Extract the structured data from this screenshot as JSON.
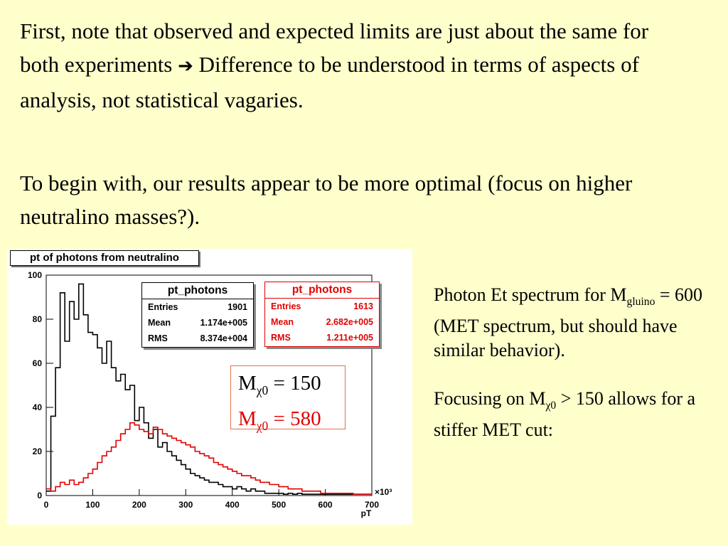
{
  "slide": {
    "para1_before": "First, note that observed and expected limits are just about the same for both experiments",
    "arrow_icon": "right-arrow-icon",
    "para1_after": "Difference to be understood in terms of aspects of analysis, not statistical vagaries.",
    "para2": "To begin with, our results appear to be more optimal (focus on higher neutralino masses?).",
    "side": {
      "line1_pre": "Photon Et spectrum for M",
      "line1_sub": "gluino",
      "line1_post": " = 600 (MET spectrum, but should have similar behavior).",
      "line2_pre": "Focusing on M",
      "line2_sub": "χ0",
      "line2_post": " > 150 allows for a stiffer MET cut:"
    }
  },
  "plot": {
    "title": "pt of photons from neutralino",
    "stats_black": {
      "name": "pt_photons",
      "rows": [
        [
          "Entries",
          "1901"
        ],
        [
          "Mean",
          "1.174e+005"
        ],
        [
          "RMS",
          "8.374e+004"
        ]
      ]
    },
    "stats_red": {
      "name": "pt_photons",
      "rows": [
        [
          "Entries",
          "1613"
        ],
        [
          "Mean",
          "2.682e+005"
        ],
        [
          "RMS",
          "1.211e+005"
        ]
      ]
    },
    "legend": {
      "l1_pre": "M",
      "l1_sub": "χ0",
      "l1_post": " = 150",
      "l2_pre": "M",
      "l2_sub": "χ0",
      "l2_post": " = 580"
    }
  },
  "chart_data": {
    "type": "line",
    "title": "pt of photons from neutralino",
    "xlabel": "pT",
    "x_multiplier_label": "×10³",
    "ylabel": "",
    "xlim": [
      0,
      700
    ],
    "ylim": [
      0,
      100
    ],
    "x_ticks": [
      0,
      100,
      200,
      300,
      400,
      500,
      600,
      700
    ],
    "y_ticks": [
      0,
      20,
      40,
      60,
      80,
      100
    ],
    "bin_width": 10,
    "colors": {
      "black": "#000000",
      "red": "#e00000"
    },
    "series": [
      {
        "name": "M χ0 = 150",
        "color": "#000000",
        "values": [
          2,
          36,
          58,
          92,
          70,
          88,
          80,
          96,
          82,
          74,
          73,
          67,
          60,
          70,
          58,
          52,
          55,
          48,
          50,
          34,
          40,
          33,
          26,
          30,
          22,
          24,
          20,
          18,
          16,
          14,
          12,
          10,
          9,
          8,
          7,
          6,
          6,
          5,
          4,
          4,
          3,
          4,
          3,
          2,
          3,
          2,
          2,
          1,
          1,
          1,
          1,
          0,
          1,
          0,
          1,
          0,
          0,
          0,
          0,
          0,
          0,
          0,
          0,
          0,
          0,
          0,
          0,
          0,
          0,
          0
        ]
      },
      {
        "name": "M χ0 = 580",
        "color": "#e00000",
        "values": [
          3,
          2,
          4,
          6,
          5,
          7,
          5,
          6,
          8,
          10,
          12,
          15,
          18,
          20,
          22,
          25,
          28,
          30,
          33,
          32,
          30,
          29,
          28,
          31,
          30,
          28,
          27,
          26,
          25,
          24,
          23,
          22,
          20,
          19,
          18,
          17,
          15,
          14,
          13,
          12,
          11,
          10,
          9,
          9,
          8,
          7,
          6,
          6,
          5,
          5,
          4,
          4,
          3,
          3,
          3,
          2,
          2,
          2,
          2,
          1,
          1,
          1,
          1,
          1,
          1,
          1,
          0,
          0,
          0,
          0
        ]
      }
    ]
  }
}
